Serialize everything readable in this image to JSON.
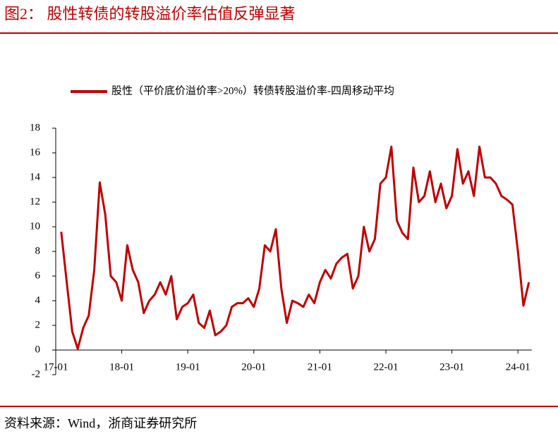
{
  "chart_data": {
    "type": "line",
    "title": "图2： 股性转债的转股溢价率估值反弹显著",
    "x": [
      "17-01",
      "17-02",
      "17-03",
      "17-04",
      "17-05",
      "17-06",
      "17-07",
      "17-08",
      "17-09",
      "17-10",
      "17-11",
      "17-12",
      "18-01",
      "18-02",
      "18-03",
      "18-04",
      "18-05",
      "18-06",
      "18-07",
      "18-08",
      "18-09",
      "18-10",
      "18-11",
      "18-12",
      "19-01",
      "19-02",
      "19-03",
      "19-04",
      "19-05",
      "19-06",
      "19-07",
      "19-08",
      "19-09",
      "19-10",
      "19-11",
      "19-12",
      "20-01",
      "20-02",
      "20-03",
      "20-04",
      "20-05",
      "20-06",
      "20-07",
      "20-08",
      "20-09",
      "20-10",
      "20-11",
      "20-12",
      "21-01",
      "21-02",
      "21-03",
      "21-04",
      "21-05",
      "21-06",
      "21-07",
      "21-08",
      "21-09",
      "21-10",
      "21-11",
      "21-12",
      "22-01",
      "22-02",
      "22-03",
      "22-04",
      "22-05",
      "22-06",
      "22-07",
      "22-08",
      "22-09",
      "22-10",
      "22-11",
      "22-12",
      "23-01",
      "23-02",
      "23-03",
      "23-04",
      "23-05",
      "23-06",
      "23-07",
      "23-08",
      "23-09",
      "23-10",
      "23-11",
      "23-12",
      "24-01",
      "24-02",
      "24-03"
    ],
    "series": [
      {
        "name": "股性（平价底价溢价率>20%）转债转股溢价率-四周移动平均",
        "color": "#c00000",
        "values": [
          null,
          9.6,
          5.5,
          1.5,
          0.1,
          1.8,
          2.8,
          6.5,
          13.6,
          11,
          6,
          5.5,
          4,
          8.5,
          6.5,
          5.5,
          3,
          4,
          4.5,
          5.5,
          4.5,
          6,
          2.5,
          3.5,
          3.8,
          4.5,
          2.2,
          1.8,
          3.2,
          1.2,
          1.5,
          2,
          3.5,
          3.8,
          3.8,
          4.2,
          3.5,
          5,
          8.5,
          8,
          9.8,
          5,
          2.2,
          4,
          3.8,
          3.5,
          4.5,
          3.8,
          5.5,
          6.5,
          5.8,
          7,
          7.5,
          7.8,
          5,
          6,
          10,
          8,
          9,
          13.5,
          14,
          16.5,
          10.5,
          9.5,
          9,
          14.8,
          12,
          12.5,
          14.5,
          12,
          13.5,
          11.5,
          12.5,
          16.3,
          13.5,
          14.5,
          12.5,
          16.5,
          14,
          14,
          13.5,
          12.5,
          12.2,
          11.8,
          8,
          3.6,
          5.5
        ]
      }
    ],
    "xticks": [
      "17-01",
      "18-01",
      "19-01",
      "20-01",
      "21-01",
      "22-01",
      "23-01",
      "24-01"
    ],
    "ylim": [
      -2,
      18
    ],
    "yticks": [
      -2,
      0,
      2,
      4,
      6,
      8,
      10,
      12,
      14,
      16,
      18
    ]
  },
  "source": "资料来源：Wind，浙商证券研究所"
}
